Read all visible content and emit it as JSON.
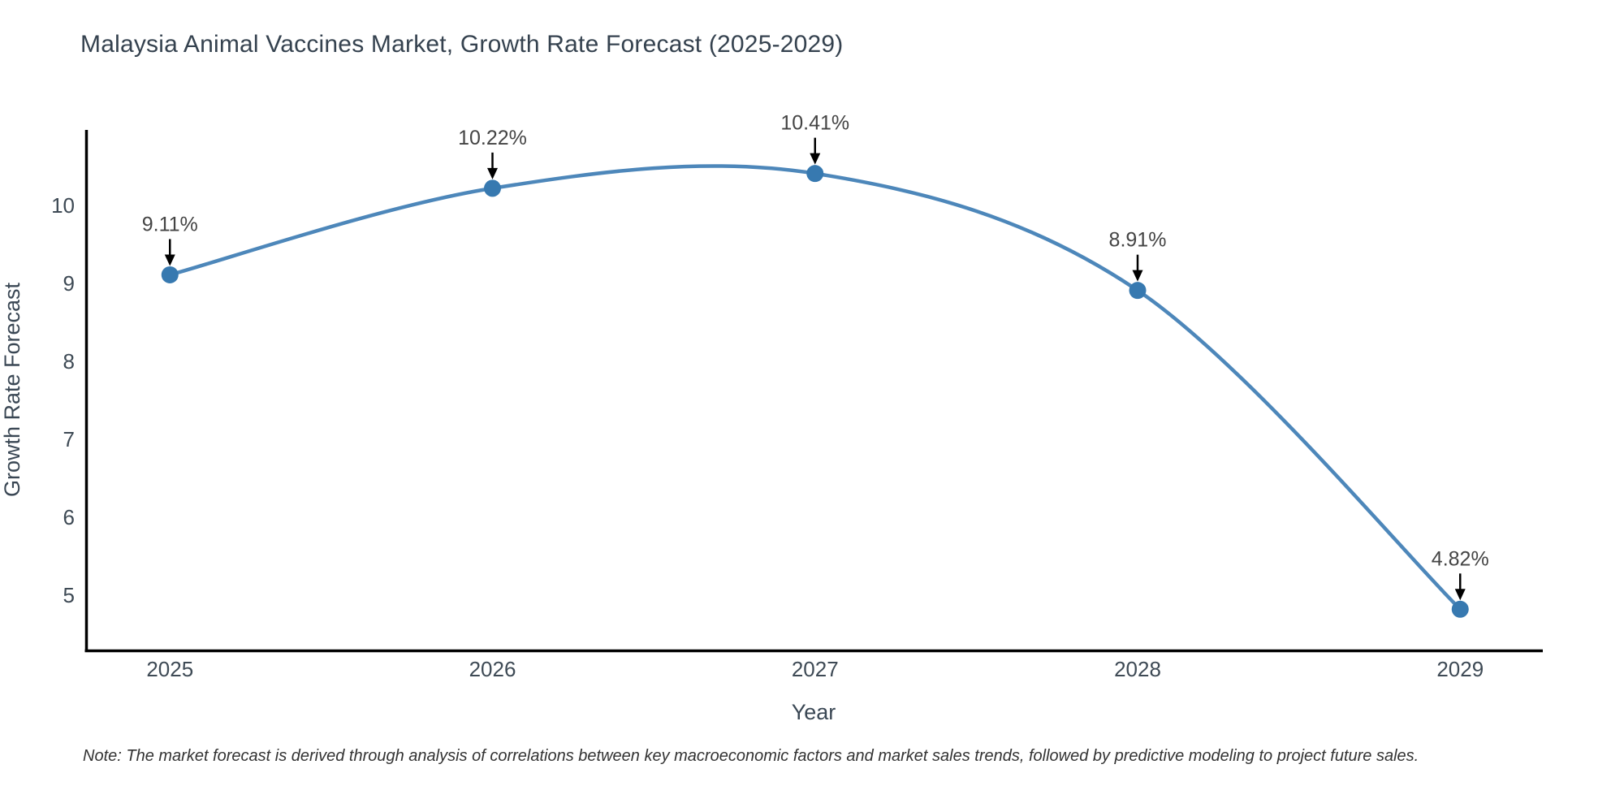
{
  "chart_data": {
    "type": "line",
    "title": "Malaysia Animal Vaccines Market, Growth Rate Forecast (2025-2029)",
    "xlabel": "Year",
    "ylabel": "Growth Rate Forecast",
    "note": "Note: The market forecast is derived through analysis of correlations between key macroeconomic factors and market sales trends, followed by predictive modeling to project future sales.",
    "x": [
      2025,
      2026,
      2027,
      2028,
      2029
    ],
    "series": [
      {
        "name": "Growth Rate Forecast",
        "values": [
          9.11,
          10.22,
          10.41,
          8.91,
          4.82
        ],
        "point_labels": [
          "9.11%",
          "10.22%",
          "10.41%",
          "8.91%",
          "4.82%"
        ]
      }
    ],
    "xticks": [
      "2025",
      "2026",
      "2027",
      "2028",
      "2029"
    ],
    "yticks": [
      5,
      6,
      7,
      8,
      9,
      10
    ],
    "ylim": [
      4.29,
      10.97
    ],
    "grid": false,
    "legend": "none",
    "line_shape": "spline",
    "annotation_style": "value label with downward arrow above each data point",
    "colors": {
      "line": "#4d87ba",
      "marker": "#3779b0",
      "axis_line": "#000000",
      "tick_text": "#3e4a55",
      "axis_title_text": "#3a4754",
      "title_text": "#35424f",
      "annotation_arrow": "#000000",
      "annotation_text": "#444444",
      "note_text": "#333333",
      "background": "#ffffff"
    }
  }
}
